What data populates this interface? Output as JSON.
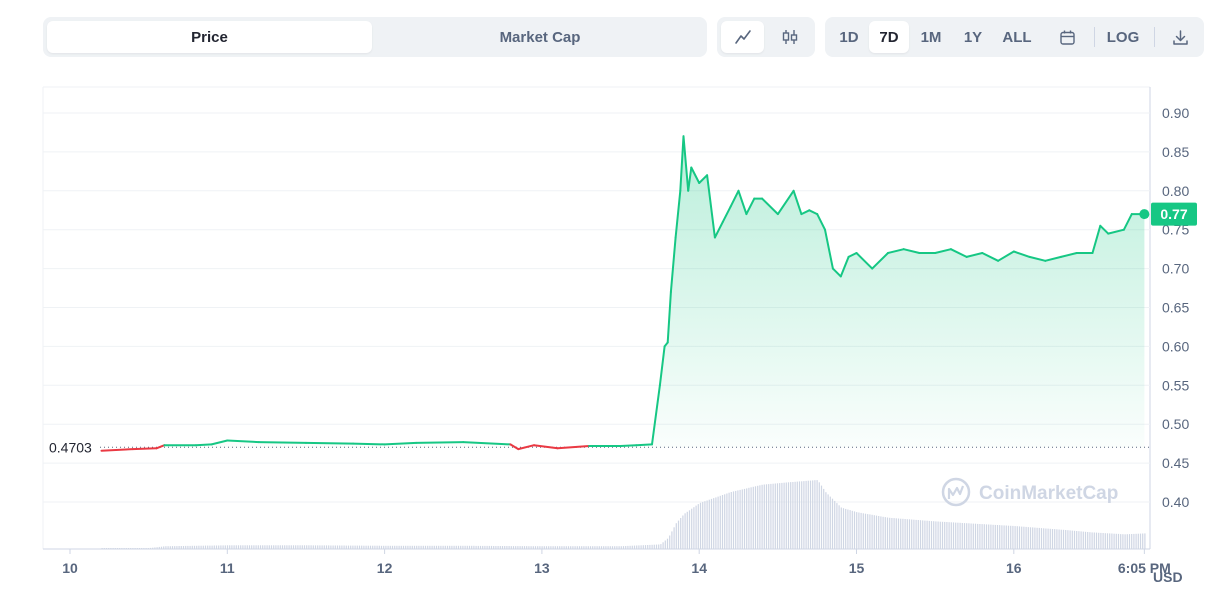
{
  "toolbar": {
    "metric_tabs": [
      {
        "label": "Price",
        "active": true
      },
      {
        "label": "Market Cap",
        "active": false
      }
    ],
    "chart_type_icons": [
      {
        "icon": "line-chart-icon",
        "active": true
      },
      {
        "icon": "candlestick-icon",
        "active": false
      }
    ],
    "ranges": [
      {
        "label": "1D",
        "active": false
      },
      {
        "label": "7D",
        "active": true
      },
      {
        "label": "1M",
        "active": false
      },
      {
        "label": "1Y",
        "active": false
      },
      {
        "label": "ALL",
        "active": false
      }
    ],
    "calendar_icon": "calendar-icon",
    "log_label": "LOG",
    "download_icon": "download-icon"
  },
  "watermark": "CoinMarketCap",
  "colors": {
    "up": "#16c784",
    "down": "#ea3943",
    "volume": "#cfd6e4",
    "grid": "#eff2f5"
  },
  "chart_data": {
    "type": "area",
    "ylim": [
      0.35,
      0.92
    ],
    "y_ticks": [
      "0.90",
      "0.85",
      "0.80",
      "0.75",
      "0.70",
      "0.65",
      "0.60",
      "0.55",
      "0.50",
      "0.45",
      "0.40"
    ],
    "x_ticks": [
      "10",
      "11",
      "12",
      "13",
      "14",
      "15",
      "16",
      "6:05 PM"
    ],
    "x_tick_days": [
      10,
      11,
      12,
      13,
      14,
      15,
      16,
      16.83
    ],
    "y_unit": "USD",
    "open_price_label": "0.4703",
    "open_price": 0.4703,
    "current_price_label": "0.77",
    "current_price": 0.77,
    "price_series": {
      "x": [
        10.2,
        10.4,
        10.55,
        10.6,
        10.8,
        10.9,
        11.0,
        11.2,
        11.5,
        11.8,
        12.0,
        12.2,
        12.5,
        12.8,
        12.85,
        12.95,
        13.1,
        13.3,
        13.5,
        13.6,
        13.7,
        13.75,
        13.78,
        13.8,
        13.82,
        13.85,
        13.88,
        13.9,
        13.93,
        13.95,
        14.0,
        14.05,
        14.1,
        14.15,
        14.2,
        14.25,
        14.3,
        14.35,
        14.4,
        14.5,
        14.6,
        14.65,
        14.7,
        14.75,
        14.8,
        14.85,
        14.9,
        14.95,
        15.0,
        15.1,
        15.2,
        15.3,
        15.4,
        15.5,
        15.6,
        15.7,
        15.8,
        15.9,
        16.0,
        16.1,
        16.2,
        16.3,
        16.4,
        16.5,
        16.55,
        16.6,
        16.7,
        16.75,
        16.8,
        16.83
      ],
      "y": [
        0.466,
        0.468,
        0.469,
        0.473,
        0.473,
        0.474,
        0.479,
        0.477,
        0.476,
        0.475,
        0.474,
        0.476,
        0.477,
        0.474,
        0.468,
        0.473,
        0.469,
        0.472,
        0.472,
        0.473,
        0.474,
        0.55,
        0.6,
        0.605,
        0.67,
        0.74,
        0.8,
        0.87,
        0.8,
        0.83,
        0.81,
        0.82,
        0.74,
        0.76,
        0.78,
        0.8,
        0.77,
        0.79,
        0.79,
        0.77,
        0.8,
        0.77,
        0.775,
        0.77,
        0.75,
        0.7,
        0.69,
        0.715,
        0.72,
        0.7,
        0.72,
        0.725,
        0.72,
        0.72,
        0.725,
        0.715,
        0.72,
        0.71,
        0.722,
        0.715,
        0.71,
        0.715,
        0.72,
        0.72,
        0.755,
        0.745,
        0.75,
        0.77,
        0.77,
        0.77
      ]
    },
    "volume_series": {
      "x": [
        10.2,
        10.5,
        10.6,
        11.0,
        11.5,
        12.0,
        12.5,
        13.0,
        13.5,
        13.75,
        13.8,
        13.85,
        13.9,
        14.0,
        14.2,
        14.4,
        14.6,
        14.75,
        14.8,
        14.9,
        15.0,
        15.2,
        15.5,
        15.8,
        16.0,
        16.3,
        16.5,
        16.7,
        16.83
      ],
      "v": [
        0.01,
        0.01,
        0.03,
        0.04,
        0.04,
        0.035,
        0.035,
        0.03,
        0.03,
        0.05,
        0.12,
        0.28,
        0.38,
        0.5,
        0.62,
        0.7,
        0.73,
        0.75,
        0.62,
        0.45,
        0.4,
        0.34,
        0.3,
        0.27,
        0.25,
        0.21,
        0.18,
        0.16,
        0.17
      ]
    }
  }
}
